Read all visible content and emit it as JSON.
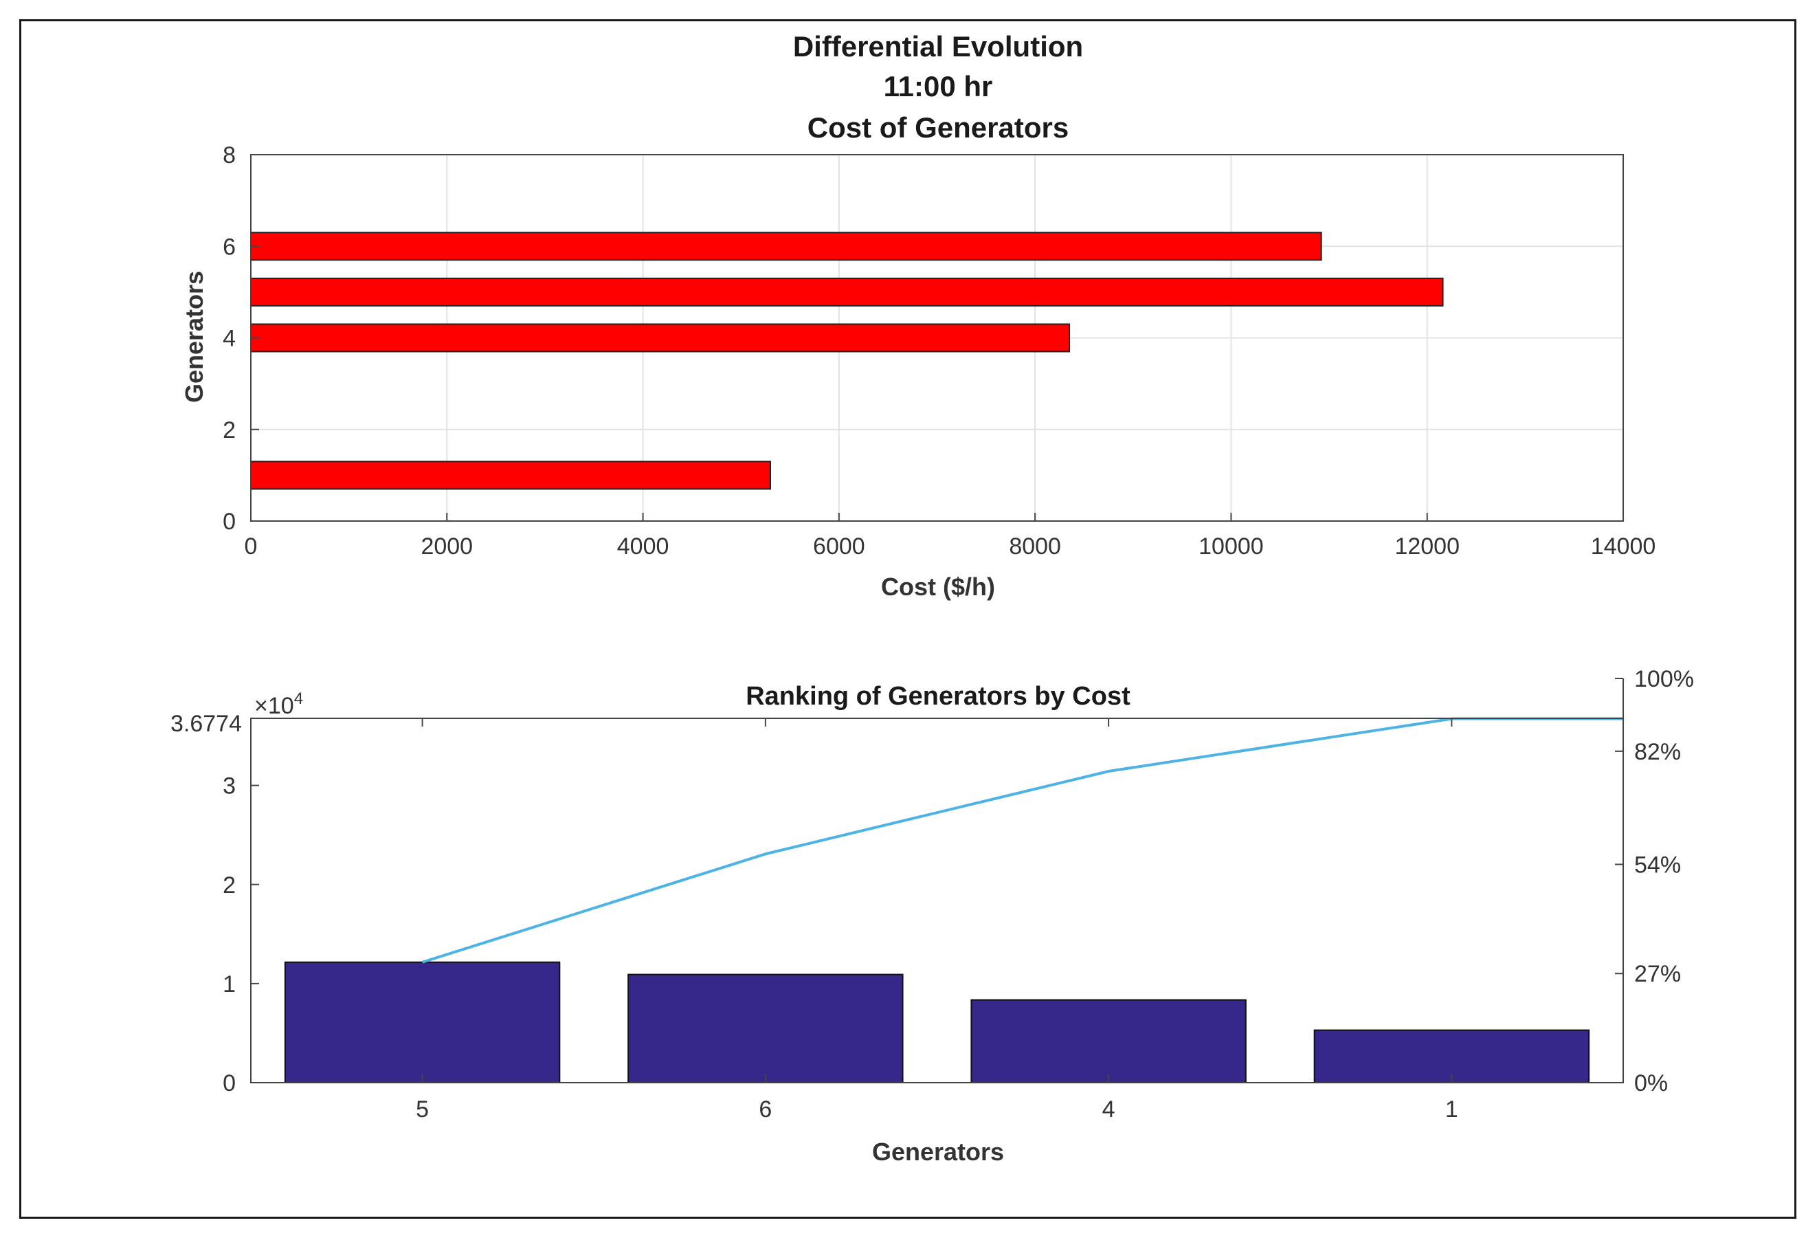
{
  "chart_data": [
    {
      "type": "bar",
      "orientation": "horizontal",
      "title_lines": [
        "Differential Evolution",
        "11:00 hr",
        "Cost of Generators"
      ],
      "xlabel": "Cost ($/h)",
      "ylabel": "Generators",
      "xlim": [
        0,
        14000
      ],
      "ylim": [
        0,
        8
      ],
      "xticks": [
        0,
        2000,
        4000,
        6000,
        8000,
        10000,
        12000,
        14000
      ],
      "yticks": [
        0,
        2,
        4,
        6,
        8
      ],
      "grid": true,
      "bar_color": "#ff0000",
      "bars": [
        {
          "generator": 1,
          "value": 5300
        },
        {
          "generator": 2,
          "value": 0
        },
        {
          "generator": 3,
          "value": 0
        },
        {
          "generator": 4,
          "value": 8350
        },
        {
          "generator": 5,
          "value": 12160
        },
        {
          "generator": 6,
          "value": 10920
        }
      ]
    },
    {
      "type": "bar",
      "subtype": "pareto",
      "title": "Ranking of Generators by Cost",
      "xlabel": "Generators",
      "categories": [
        "5",
        "6",
        "4",
        "1"
      ],
      "values": [
        12160,
        10920,
        8350,
        5300
      ],
      "ylim": [
        0,
        36774
      ],
      "yticks": [
        0,
        1,
        2,
        3
      ],
      "ytick_labels": [
        "0",
        "1",
        "2",
        "3"
      ],
      "ymax_label": "3.6774",
      "exponent_label": "×10",
      "exponent_power": "4",
      "right_ticks": [
        0,
        27,
        54,
        82,
        100
      ],
      "right_tick_labels": [
        "0%",
        "27%",
        "54%",
        "82%",
        "100%"
      ],
      "cumulative": [
        12160,
        23080,
        31430,
        36730
      ],
      "bar_color": "#36278a",
      "line_color": "#4db3e6"
    }
  ]
}
